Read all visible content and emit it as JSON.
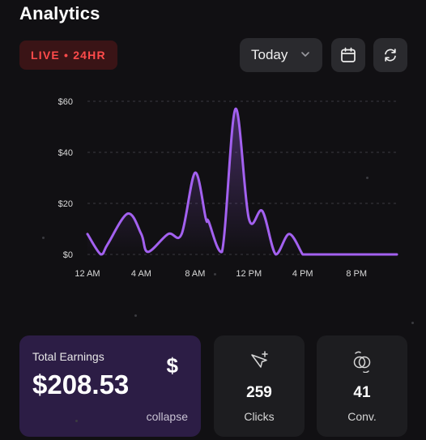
{
  "header": {
    "title": "Analytics",
    "live_badge": "LIVE • 24HR"
  },
  "toolbar": {
    "range_value": "Today",
    "calendar_icon": "calendar-icon",
    "refresh_icon": "refresh-icon"
  },
  "chart_data": {
    "type": "line",
    "xlabels": [
      "12 AM",
      "4 AM",
      "8 AM",
      "12 PM",
      "4 PM",
      "8 PM"
    ],
    "xlabel_hours": [
      0,
      4,
      8,
      12,
      16,
      20
    ],
    "ytick_labels": [
      "$60",
      "$40",
      "$20",
      "$0"
    ],
    "yticks": [
      60,
      40,
      20,
      0
    ],
    "ylim": [
      0,
      60
    ],
    "xlim": [
      0,
      23
    ],
    "grid": true,
    "line_color": "#a361f0",
    "x": [
      0,
      1,
      1.5,
      3,
      4,
      4.5,
      6,
      7,
      8,
      8.8,
      9,
      10,
      11,
      12,
      13,
      14,
      15,
      16,
      16.2,
      17,
      18,
      20,
      22,
      23
    ],
    "y": [
      8,
      0,
      4,
      16,
      8,
      1,
      8,
      8,
      32,
      14,
      13,
      1,
      57,
      14,
      17,
      0,
      8,
      0,
      0,
      0,
      0,
      0,
      0,
      0
    ]
  },
  "earnings": {
    "label": "Total Earnings",
    "value": "$208.53",
    "currency_symbol": "$",
    "collapse_label": "collapse"
  },
  "stats": [
    {
      "value": "259",
      "label": "Clicks",
      "icon": "cursor-click-icon"
    },
    {
      "value": "41",
      "label": "Conv.",
      "icon": "conversion-icon"
    }
  ],
  "colors": {
    "background": "#111013",
    "accent": "#a361f0",
    "live": "#ff4b4b",
    "earnings_card": "#2c1d45"
  }
}
